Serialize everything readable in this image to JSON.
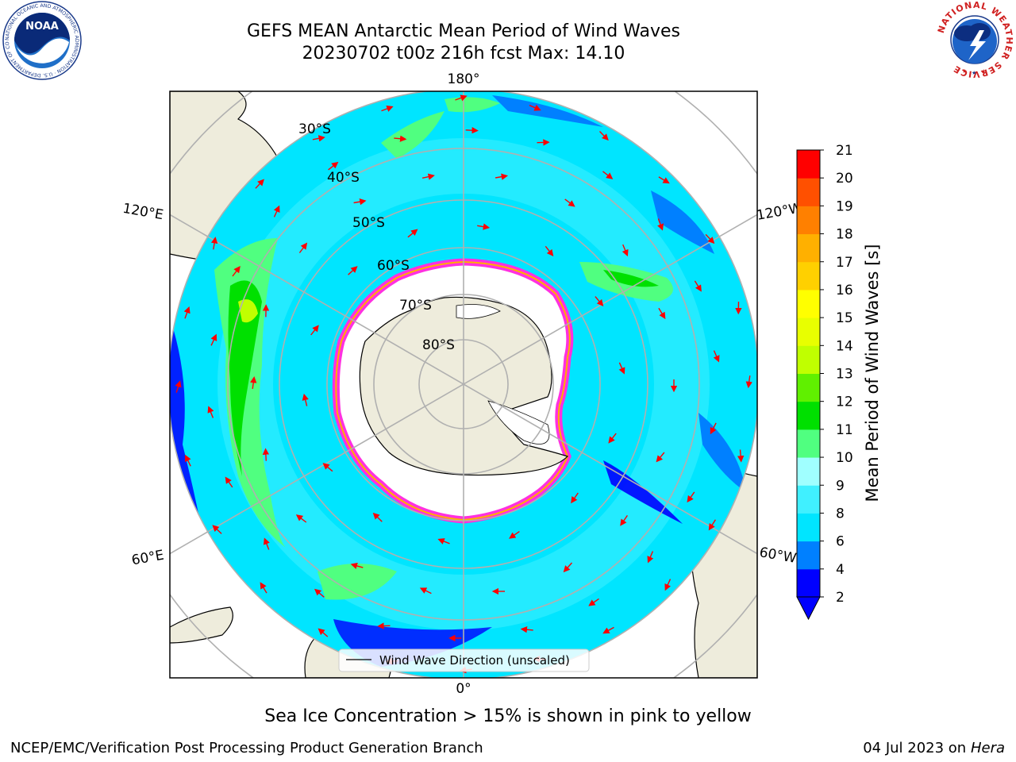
{
  "header": {
    "title_line1": "GEFS MEAN Antarctic Mean Period of Wind Waves",
    "title_line2": "20230702 t00z 216h fcst   Max: 14.10"
  },
  "logos": {
    "left": {
      "name": "noaa-logo",
      "text": "NOAA",
      "ring_text": "NATIONAL OCEANIC AND ATMOSPHERIC ADMINISTRATION · U.S. DEPARTMENT OF COMMERCE"
    },
    "right": {
      "name": "nws-logo",
      "ring_text": "NATIONAL WEATHER SERVICE"
    }
  },
  "map": {
    "projection": "south-polar-stereographic",
    "longitude_labels": [
      "180°",
      "120°E",
      "120°W",
      "60°E",
      "60°W",
      "0°"
    ],
    "latitude_labels": [
      "30°S",
      "40°S",
      "50°S",
      "60°S",
      "70°S",
      "80°S"
    ],
    "legend_label": "Wind Wave Direction (unscaled)"
  },
  "colorbar": {
    "label": "Mean Period of Wind Waves [s]",
    "ticks": [
      "2",
      "4",
      "6",
      "8",
      "9",
      "10",
      "11",
      "12",
      "13",
      "14",
      "15",
      "16",
      "17",
      "18",
      "19",
      "20",
      "21"
    ],
    "colors": [
      "#0000ff",
      "#0080ff",
      "#00e5ff",
      "#40f0ff",
      "#a0ffff",
      "#50ff80",
      "#00e000",
      "#60f000",
      "#c0ff00",
      "#e8ff00",
      "#ffff00",
      "#ffd000",
      "#ffb000",
      "#ff8000",
      "#ff5000",
      "#ff0000"
    ],
    "extend_color": "#0000ff"
  },
  "caption": "Sea Ice Concentration > 15% is shown in pink to yellow",
  "footer": {
    "left": "NCEP/EMC/Verification Post Processing Product Generation Branch",
    "right_date": "04 Jul 2023 on",
    "right_host": "Hera"
  }
}
